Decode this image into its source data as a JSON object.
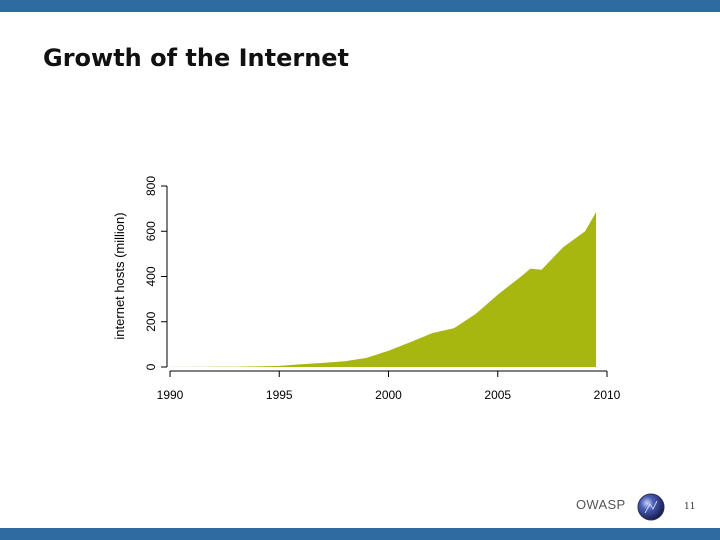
{
  "slide": {
    "title": "Growth of the Internet",
    "footer_org": "OWASP",
    "page_number": "11",
    "logo_icon": "owasp-globe-icon"
  },
  "colors": {
    "header_bar": "#2f6aa0",
    "footer_bar": "#2f6aa0",
    "area_fill": "#a8b710"
  },
  "chart_data": {
    "type": "area",
    "title": "",
    "xlabel": "",
    "ylabel": "internet hosts (million)",
    "xlim": [
      1990,
      2010
    ],
    "ylim": [
      0,
      800
    ],
    "x_ticks": [
      1990,
      1995,
      2000,
      2005,
      2010
    ],
    "y_ticks": [
      0,
      200,
      400,
      600,
      800
    ],
    "grid": false,
    "series": [
      {
        "x": [
          1990,
          1991,
          1992,
          1993,
          1994,
          1995,
          1996,
          1997,
          1998,
          1999,
          2000,
          2001,
          2002,
          2003,
          2004,
          2005,
          2006,
          2006.5,
          2007,
          2008,
          2009,
          2009.5
        ],
        "y": [
          0.3,
          0.6,
          1,
          1.5,
          2.5,
          5,
          12,
          18,
          25,
          40,
          72,
          110,
          150,
          172,
          235,
          320,
          395,
          435,
          430,
          530,
          600,
          685
        ]
      }
    ]
  }
}
